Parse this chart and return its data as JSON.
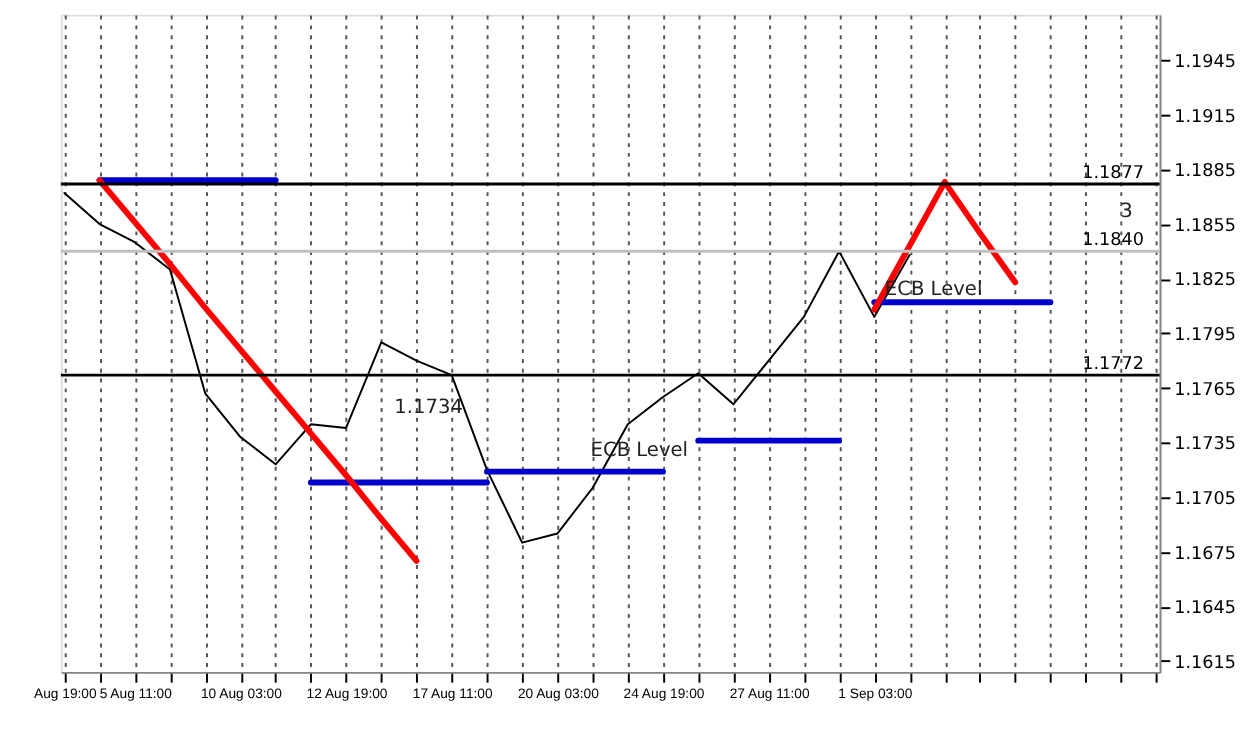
{
  "chart_data": {
    "type": "line",
    "categories": [
      "Aug 19:00",
      null,
      "5 Aug 11:00",
      null,
      null,
      "10 Aug 03:00",
      null,
      null,
      "12 Aug 19:00",
      null,
      null,
      "17 Aug 11:00",
      null,
      null,
      "20 Aug 03:00",
      null,
      null,
      "24 Aug 19:00",
      null,
      null,
      "27 Aug 11:00",
      null,
      null,
      "1 Sep 03:00",
      null,
      null,
      null,
      null,
      null,
      null,
      null,
      null
    ],
    "ylim": [
      1.1609,
      1.197
    ],
    "yticks": [
      1.1615,
      1.1645,
      1.1675,
      1.1705,
      1.1735,
      1.1765,
      1.1795,
      1.1825,
      1.1855,
      1.1885,
      1.1915,
      1.1945
    ],
    "grid": "x",
    "legend": false,
    "line_style": "solid",
    "series": [
      {
        "color": "#000000",
        "values": [
          1.1872,
          1.1855,
          1.1845,
          1.183,
          1.1762,
          1.1738,
          1.1723,
          1.1745,
          1.1743,
          1.179,
          1.178,
          1.1772,
          1.172,
          1.168,
          1.1685,
          1.171,
          1.1745,
          1.176,
          1.1773,
          1.1756,
          1.178,
          1.1804,
          1.184,
          1.1804,
          1.1838,
          null,
          null,
          null,
          null,
          null,
          null,
          null
        ]
      },
      {
        "color": "#0000cc",
        "values": [
          null,
          1.1879,
          1.1879,
          1.1879,
          1.1879,
          1.1879,
          1.1879,
          null,
          null,
          null,
          null,
          null,
          null,
          null,
          null,
          null,
          null,
          null,
          null,
          null,
          null,
          null,
          null,
          null,
          null,
          null,
          null,
          null,
          null,
          null,
          null,
          null
        ]
      },
      {
        "color": "#0000cc",
        "values": [
          null,
          null,
          null,
          null,
          null,
          null,
          null,
          1.1713,
          1.1713,
          1.1713,
          1.1713,
          1.1713,
          1.1713,
          null,
          null,
          null,
          null,
          null,
          null,
          null,
          null,
          null,
          null,
          null,
          null,
          null,
          null,
          null,
          null,
          null,
          null,
          null
        ]
      },
      {
        "color": "#0000cc",
        "values": [
          null,
          null,
          null,
          null,
          null,
          null,
          null,
          null,
          null,
          null,
          null,
          null,
          1.1719,
          1.1719,
          1.1719,
          1.1719,
          1.1719,
          1.1719,
          null,
          null,
          null,
          null,
          null,
          null,
          null,
          null,
          null,
          null,
          null,
          null,
          null,
          null
        ]
      },
      {
        "color": "#0000cc",
        "values": [
          null,
          null,
          null,
          null,
          null,
          null,
          null,
          null,
          null,
          null,
          null,
          null,
          null,
          null,
          null,
          null,
          null,
          null,
          1.1736,
          1.1736,
          1.1736,
          1.1736,
          1.1736,
          null,
          null,
          null,
          null,
          null,
          null,
          null,
          null,
          null
        ]
      },
      {
        "color": "#0000cc",
        "values": [
          null,
          null,
          null,
          null,
          null,
          null,
          null,
          null,
          null,
          null,
          null,
          null,
          null,
          null,
          null,
          null,
          null,
          null,
          null,
          null,
          null,
          null,
          null,
          1.1812,
          1.1812,
          1.1812,
          1.1812,
          1.1812,
          1.1812,
          null,
          null,
          null
        ]
      },
      {
        "color": "#ff0000",
        "values": [
          null,
          1.1879,
          1.1856,
          1.1833,
          1.1809,
          1.1786,
          1.1763,
          1.174,
          1.1717,
          1.1693,
          1.167,
          null,
          null,
          null,
          null,
          null,
          null,
          null,
          null,
          null,
          null,
          null,
          null,
          null,
          null,
          null,
          null,
          null,
          null,
          null,
          null,
          null
        ]
      },
      {
        "color": "#ff0000",
        "values": [
          null,
          null,
          null,
          null,
          null,
          null,
          null,
          null,
          null,
          null,
          null,
          null,
          null,
          null,
          null,
          null,
          null,
          null,
          null,
          null,
          null,
          null,
          null,
          1.1808,
          1.1843,
          1.1878,
          null,
          null,
          null,
          null,
          null,
          null
        ]
      },
      {
        "color": "#ff0000",
        "values": [
          null,
          null,
          null,
          null,
          null,
          null,
          null,
          null,
          null,
          null,
          null,
          null,
          null,
          null,
          null,
          null,
          null,
          null,
          null,
          null,
          null,
          null,
          null,
          null,
          null,
          1.1878,
          1.185,
          1.1823,
          null,
          null,
          null,
          null
        ]
      }
    ],
    "ref_lines": [
      {
        "axis": "y",
        "value": 1.1877,
        "label": "1.1877",
        "color": "#000000"
      },
      {
        "axis": "y",
        "value": 1.1772,
        "label": "1.1772",
        "color": "#000000"
      },
      {
        "axis": "y",
        "value": 1.184,
        "label": "1.1840",
        "color": "#c0c0c0"
      }
    ],
    "annotations": [
      "1.1734",
      "ECB Level",
      "ECB Level",
      "3"
    ]
  }
}
